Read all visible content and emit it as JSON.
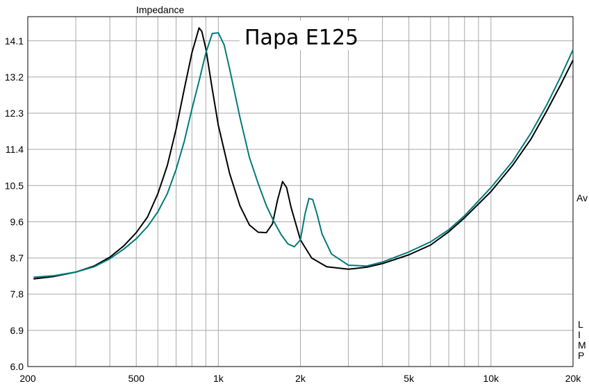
{
  "chart_data": {
    "type": "line",
    "title": "Пара Е125",
    "top_label": "Impedance",
    "right_label": "Av",
    "right_label_vertical": [
      "L",
      "I",
      "M",
      "P"
    ],
    "x_scale": "log",
    "xlim": [
      200,
      20000
    ],
    "ylim": [
      6.0,
      14.7
    ],
    "x_tick_labels": [
      {
        "value": 200,
        "label": "200"
      },
      {
        "value": 500,
        "label": "500"
      },
      {
        "value": 1000,
        "label": "1k"
      },
      {
        "value": 2000,
        "label": "2k"
      },
      {
        "value": 5000,
        "label": "5k"
      },
      {
        "value": 10000,
        "label": "10k"
      },
      {
        "value": 20000,
        "label": "20k"
      }
    ],
    "y_tick_labels": [
      {
        "value": 6.0,
        "label": "6.0"
      },
      {
        "value": 6.9,
        "label": "6.9"
      },
      {
        "value": 7.8,
        "label": "7.8"
      },
      {
        "value": 8.7,
        "label": "8.7"
      },
      {
        "value": 9.6,
        "label": "9.6"
      },
      {
        "value": 10.5,
        "label": "10.5"
      },
      {
        "value": 11.4,
        "label": "11.4"
      },
      {
        "value": 12.3,
        "label": "12.3"
      },
      {
        "value": 13.2,
        "label": "13.2"
      },
      {
        "value": 14.1,
        "label": "14.1"
      }
    ],
    "grid": true,
    "series": [
      {
        "color": "#000000",
        "points": [
          [
            210,
            8.18
          ],
          [
            250,
            8.24
          ],
          [
            300,
            8.35
          ],
          [
            350,
            8.5
          ],
          [
            400,
            8.72
          ],
          [
            450,
            9.0
          ],
          [
            500,
            9.33
          ],
          [
            550,
            9.72
          ],
          [
            600,
            10.3
          ],
          [
            650,
            11.0
          ],
          [
            700,
            11.9
          ],
          [
            750,
            12.9
          ],
          [
            800,
            13.8
          ],
          [
            850,
            14.42
          ],
          [
            870,
            14.33
          ],
          [
            900,
            13.9
          ],
          [
            950,
            12.9
          ],
          [
            1000,
            12.0
          ],
          [
            1100,
            10.8
          ],
          [
            1200,
            10.0
          ],
          [
            1300,
            9.52
          ],
          [
            1400,
            9.34
          ],
          [
            1500,
            9.33
          ],
          [
            1580,
            9.55
          ],
          [
            1650,
            10.15
          ],
          [
            1720,
            10.6
          ],
          [
            1780,
            10.45
          ],
          [
            1850,
            9.95
          ],
          [
            2000,
            9.15
          ],
          [
            2200,
            8.7
          ],
          [
            2500,
            8.48
          ],
          [
            3000,
            8.42
          ],
          [
            3500,
            8.47
          ],
          [
            4000,
            8.56
          ],
          [
            5000,
            8.78
          ],
          [
            6000,
            9.02
          ],
          [
            7000,
            9.35
          ],
          [
            8000,
            9.7
          ],
          [
            10000,
            10.35
          ],
          [
            12000,
            11.0
          ],
          [
            14000,
            11.65
          ],
          [
            16000,
            12.35
          ],
          [
            18000,
            13.0
          ],
          [
            20000,
            13.62
          ]
        ]
      },
      {
        "color": "#007a7a",
        "points": [
          [
            210,
            8.22
          ],
          [
            250,
            8.26
          ],
          [
            300,
            8.35
          ],
          [
            350,
            8.48
          ],
          [
            400,
            8.68
          ],
          [
            450,
            8.92
          ],
          [
            500,
            9.18
          ],
          [
            550,
            9.48
          ],
          [
            600,
            9.85
          ],
          [
            650,
            10.3
          ],
          [
            700,
            10.9
          ],
          [
            750,
            11.6
          ],
          [
            800,
            12.4
          ],
          [
            850,
            13.1
          ],
          [
            900,
            13.8
          ],
          [
            950,
            14.28
          ],
          [
            1000,
            14.3
          ],
          [
            1050,
            14.0
          ],
          [
            1100,
            13.4
          ],
          [
            1200,
            12.2
          ],
          [
            1300,
            11.2
          ],
          [
            1400,
            10.55
          ],
          [
            1500,
            10.0
          ],
          [
            1600,
            9.6
          ],
          [
            1700,
            9.28
          ],
          [
            1800,
            9.05
          ],
          [
            1900,
            8.98
          ],
          [
            2000,
            9.15
          ],
          [
            2080,
            9.8
          ],
          [
            2150,
            10.18
          ],
          [
            2220,
            10.15
          ],
          [
            2300,
            9.8
          ],
          [
            2400,
            9.3
          ],
          [
            2600,
            8.8
          ],
          [
            3000,
            8.52
          ],
          [
            3500,
            8.5
          ],
          [
            4000,
            8.6
          ],
          [
            5000,
            8.85
          ],
          [
            6000,
            9.1
          ],
          [
            7000,
            9.4
          ],
          [
            8000,
            9.75
          ],
          [
            10000,
            10.45
          ],
          [
            12000,
            11.1
          ],
          [
            14000,
            11.8
          ],
          [
            16000,
            12.5
          ],
          [
            18000,
            13.2
          ],
          [
            20000,
            13.88
          ]
        ]
      }
    ]
  }
}
